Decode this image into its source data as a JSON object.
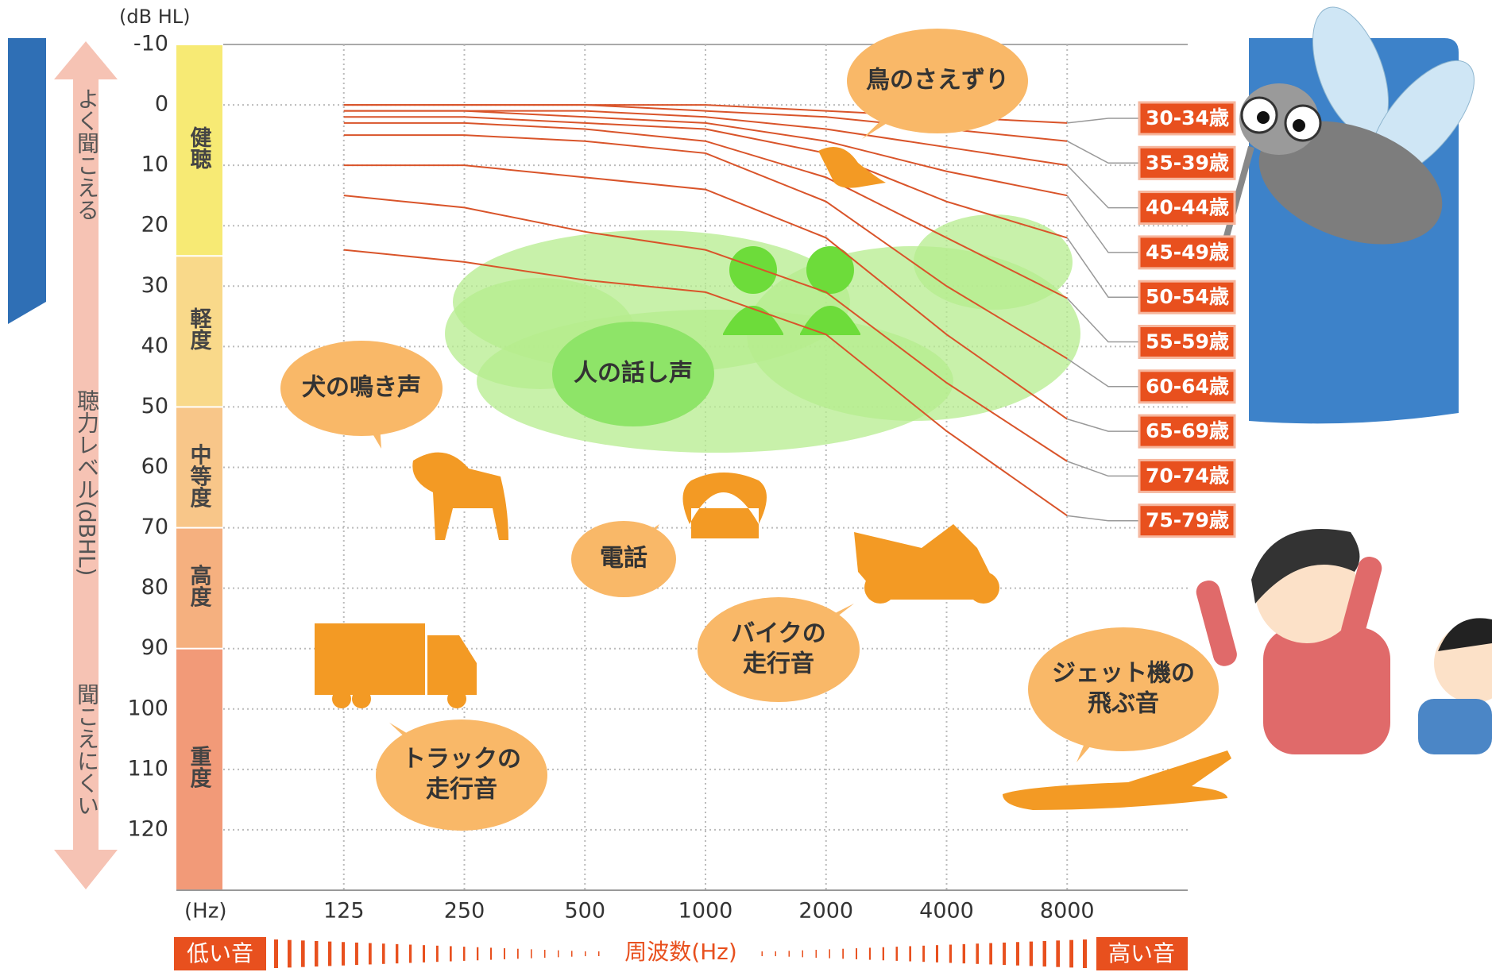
{
  "chart_data": {
    "type": "line",
    "y_unit": "(dB HL)",
    "x_unit": "(Hz)",
    "x": [
      125,
      250,
      500,
      1000,
      2000,
      4000,
      8000
    ],
    "xlim": [
      62.5,
      16000
    ],
    "xticks": [
      125,
      250,
      500,
      1000,
      2000,
      4000,
      8000
    ],
    "x_log": true,
    "ylim": [
      -10,
      130
    ],
    "y_inverted": true,
    "yticks": [
      -10,
      0,
      10,
      20,
      30,
      40,
      50,
      60,
      70,
      80,
      90,
      100,
      110,
      120
    ],
    "grid": true,
    "series": [
      {
        "name": "30-34歳",
        "color": "#d9542a",
        "values": [
          0,
          0,
          0,
          0,
          1,
          2,
          3
        ]
      },
      {
        "name": "35-39歳",
        "color": "#d9542a",
        "values": [
          0,
          0,
          0,
          1,
          2,
          4,
          6
        ]
      },
      {
        "name": "40-44歳",
        "color": "#d9542a",
        "values": [
          1,
          1,
          1,
          2,
          4,
          7,
          10
        ]
      },
      {
        "name": "45-49歳",
        "color": "#d9542a",
        "values": [
          1,
          1,
          2,
          3,
          6,
          11,
          15
        ]
      },
      {
        "name": "50-54歳",
        "color": "#d9542a",
        "values": [
          2,
          2,
          3,
          4,
          8,
          16,
          22
        ]
      },
      {
        "name": "55-59歳",
        "color": "#d9542a",
        "values": [
          3,
          3,
          4,
          6,
          12,
          22,
          32
        ]
      },
      {
        "name": "60-64歳",
        "color": "#d9542a",
        "values": [
          5,
          5,
          6,
          8,
          16,
          30,
          42
        ]
      },
      {
        "name": "65-69歳",
        "color": "#d9542a",
        "values": [
          10,
          10,
          12,
          14,
          22,
          38,
          52
        ]
      },
      {
        "name": "70-74歳",
        "color": "#d9542a",
        "values": [
          15,
          17,
          21,
          24,
          31,
          46,
          59
        ]
      },
      {
        "name": "75-79歳",
        "color": "#d9542a",
        "values": [
          24,
          26,
          29,
          31,
          38,
          54,
          68
        ]
      }
    ],
    "bands": [
      {
        "label": "健聴",
        "range": [
          -10,
          25
        ],
        "color": "#f7ea74"
      },
      {
        "label": "軽度",
        "range": [
          25,
          50
        ],
        "color": "#f9d98a"
      },
      {
        "label": "中等度",
        "range": [
          50,
          70
        ],
        "color": "#f8c689"
      },
      {
        "label": "高度",
        "range": [
          70,
          90
        ],
        "color": "#f5b07f"
      },
      {
        "label": "重度",
        "range": [
          90,
          130
        ],
        "color": "#f29a78"
      }
    ],
    "side_labels": [
      "よく聞こえる",
      "聴力レベル(dBHL)",
      "聞こえにくい"
    ],
    "bottom_labels": [
      "低い音",
      "周波数(Hz)",
      "高い音"
    ],
    "annotations": [
      [
        "鳥のさえずり"
      ],
      [
        "人の話し声"
      ],
      [
        "犬の鳴き声"
      ],
      [
        "電話"
      ],
      [
        "バイクの",
        "走行音"
      ],
      [
        "トラックの",
        "走行音"
      ],
      [
        "ジェット機の",
        "飛ぶ音"
      ]
    ]
  }
}
